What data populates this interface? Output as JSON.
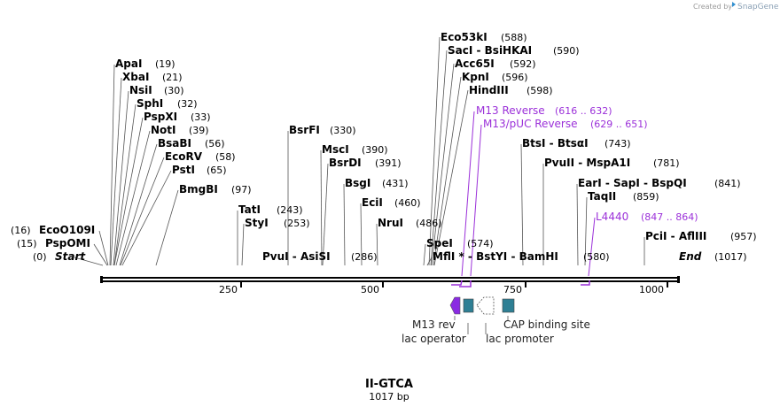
{
  "credit": {
    "created_by": "Created by",
    "brand": "SnapGene"
  },
  "map": {
    "name": "II-GTCA",
    "length_label": "1017 bp",
    "length": 1017,
    "ticks": [
      {
        "value": 250,
        "label": "250"
      },
      {
        "value": 500,
        "label": "500"
      },
      {
        "value": 750,
        "label": "750"
      },
      {
        "value": 1000,
        "label": "1000"
      }
    ],
    "left_labels": [
      {
        "name": "EcoO109I",
        "pos": "(16)"
      },
      {
        "name": "PspOMI",
        "pos": "(15)"
      },
      {
        "name": "Start",
        "pos": "(0)"
      }
    ],
    "right_label": {
      "name": "End",
      "pos": "(1017)"
    },
    "enzymes": [
      {
        "name": "ApaI",
        "pos": "(19)"
      },
      {
        "name": "XbaI",
        "pos": "(21)"
      },
      {
        "name": "NsiI",
        "pos": "(30)"
      },
      {
        "name": "SphI",
        "pos": "(32)"
      },
      {
        "name": "PspXI",
        "pos": "(33)"
      },
      {
        "name": "NotI",
        "pos": "(39)"
      },
      {
        "name": "BsaBI",
        "pos": "(56)"
      },
      {
        "name": "EcoRV",
        "pos": "(58)"
      },
      {
        "name": "PstI",
        "pos": "(65)"
      },
      {
        "name": "BmgBI",
        "pos": "(97)"
      },
      {
        "name": "TatI",
        "pos": "(243)"
      },
      {
        "name": "StyI",
        "pos": "(253)"
      },
      {
        "name": "PvuI - AsiSI",
        "pos": "(286)"
      },
      {
        "name": "BsrFI",
        "pos": "(330)"
      },
      {
        "name": "MscI",
        "pos": "(390)"
      },
      {
        "name": "BsrDI",
        "pos": "(391)"
      },
      {
        "name": "BsgI",
        "pos": "(431)"
      },
      {
        "name": "EciI",
        "pos": "(460)"
      },
      {
        "name": "NruI",
        "pos": "(486)"
      },
      {
        "name": "SpeI",
        "pos": "(574)"
      },
      {
        "name": "MflI * - BstYI - BamHI",
        "pos": "(580)"
      },
      {
        "name": "Eco53kI",
        "pos": "(588)"
      },
      {
        "name": "SacI - BsiHKAI",
        "pos": "(590)"
      },
      {
        "name": "Acc65I",
        "pos": "(592)"
      },
      {
        "name": "KpnI",
        "pos": "(596)"
      },
      {
        "name": "HindIII",
        "pos": "(598)"
      },
      {
        "name": "BtsI - BtsαI",
        "pos": "(743)"
      },
      {
        "name": "PvuII - MspA1I",
        "pos": "(781)"
      },
      {
        "name": "EarI - SapI - BspQI",
        "pos": "(841)"
      },
      {
        "name": "TaqII",
        "pos": "(859)"
      },
      {
        "name": "PciI - AflIII",
        "pos": "(957)"
      }
    ],
    "primers": [
      {
        "name": "M13 Reverse",
        "range": "(616 .. 632)"
      },
      {
        "name": "M13/pUC Reverse",
        "range": "(629 .. 651)"
      },
      {
        "name": "L4440",
        "range": "(847 .. 864)"
      }
    ],
    "features": [
      {
        "name": "M13 rev",
        "color": "#8a2be2"
      },
      {
        "name": "lac operator",
        "color": "#2e7f94"
      },
      {
        "name": "lac promoter",
        "color": "#ffffff"
      },
      {
        "name": "CAP binding site",
        "color": "#2e7f94"
      }
    ]
  }
}
